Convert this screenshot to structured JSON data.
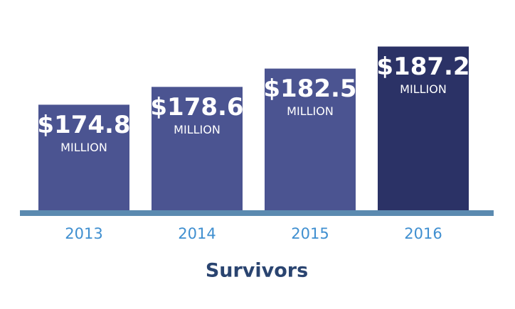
{
  "chart_data": {
    "type": "bar",
    "title": "Survivors",
    "categories": [
      "2013",
      "2014",
      "2015",
      "2016"
    ],
    "values": [
      174.8,
      178.6,
      182.5,
      187.2
    ],
    "value_labels": [
      "$174.8",
      "$178.6",
      "$182.5",
      "$187.2"
    ],
    "unit": "MILLION",
    "colors": [
      "#4b5491",
      "#4b5491",
      "#4b5491",
      "#2b3266"
    ],
    "ylim": [
      152,
      195
    ]
  }
}
